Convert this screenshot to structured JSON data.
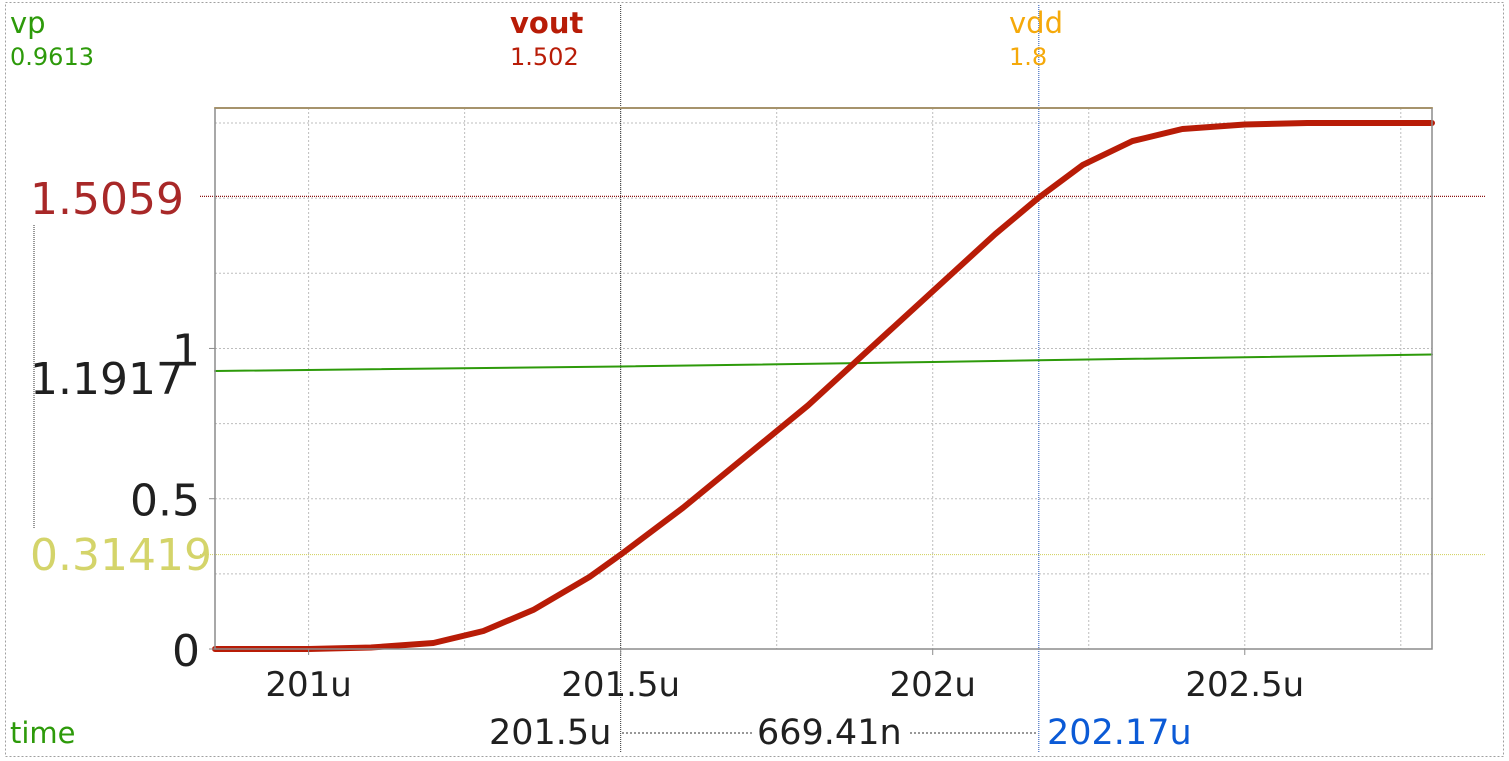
{
  "signals": [
    {
      "name": "vp",
      "value": "0.9613",
      "color": "#2d9a0a",
      "bold": false
    },
    {
      "name": "vout",
      "value": "1.502",
      "color": "#b81c07",
      "bold": true
    },
    {
      "name": "vdd",
      "value": "1.8",
      "color": "#f5a90a",
      "bold": false
    }
  ],
  "x_axis_label": "time",
  "cursors": {
    "a_value": "201.5u",
    "delta": "669.41n",
    "b_value": "202.17u",
    "a_y_label": "0.31419",
    "b_y_label": "1.5059",
    "a_y_color": "#d4d46a",
    "b_y_color": "#a82828",
    "b_x_color": "#0b5ad6",
    "y_cursor_mid_label": "1.1917"
  },
  "chart_data": {
    "type": "line",
    "xlim": [
      200.85,
      202.8
    ],
    "ylim": [
      0,
      1.8
    ],
    "grid": true,
    "x_ticks": [
      201.0,
      201.5,
      202.0,
      202.5
    ],
    "x_tick_labels": [
      "201u",
      "201.5u",
      "202u",
      "202.5u"
    ],
    "y_ticks": [
      0,
      0.5,
      1
    ],
    "y_tick_labels": [
      "0",
      "0.5",
      "1"
    ],
    "cursor_x": [
      201.5,
      202.17
    ],
    "cursor_y": [
      0.31419,
      1.5059
    ],
    "series": [
      {
        "name": "vdd",
        "color": "#f5a90a",
        "width": 2,
        "x": [
          200.85,
          202.8
        ],
        "y": [
          1.8,
          1.8
        ]
      },
      {
        "name": "vp",
        "color": "#2d9a0a",
        "width": 2,
        "x": [
          200.85,
          201.5,
          202.0,
          202.17,
          202.8
        ],
        "y": [
          0.925,
          0.94,
          0.955,
          0.961,
          0.98
        ]
      },
      {
        "name": "vout",
        "color": "#b81c07",
        "width": 6,
        "x": [
          200.85,
          201.0,
          201.1,
          201.2,
          201.28,
          201.36,
          201.45,
          201.5,
          201.6,
          201.7,
          201.8,
          201.9,
          202.0,
          202.1,
          202.17,
          202.24,
          202.32,
          202.4,
          202.5,
          202.6,
          202.8
        ],
        "y": [
          0.0,
          0.0,
          0.005,
          0.02,
          0.06,
          0.13,
          0.24,
          0.314,
          0.47,
          0.64,
          0.81,
          1.0,
          1.19,
          1.38,
          1.502,
          1.61,
          1.69,
          1.73,
          1.745,
          1.75,
          1.75
        ]
      }
    ]
  }
}
